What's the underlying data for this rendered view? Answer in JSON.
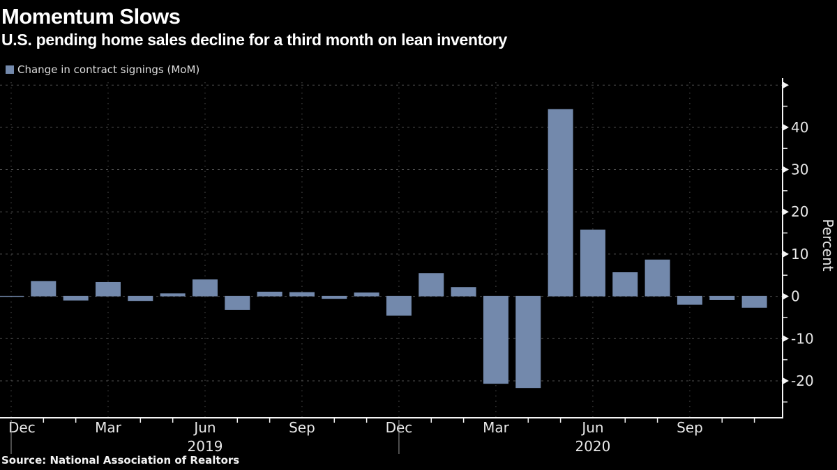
{
  "header": {
    "title": "Momentum Slows",
    "subtitle": "U.S. pending home sales decline for a third month on lean inventory"
  },
  "legend": {
    "label": "Change in contract signings (MoM)",
    "swatch_color": "#7389AC"
  },
  "source": {
    "text": "Source: National Association of Realtors"
  },
  "colors": {
    "background": "#000000",
    "bar": "#7389AC",
    "axis": "#f5f5f5",
    "gridline": "#4f4f4f",
    "tick_label": "#e8e8e8",
    "year_separator": "#999999"
  },
  "chart_data": {
    "type": "bar",
    "title": "Momentum Slows",
    "subtitle": "U.S. pending home sales decline for a third month on lean inventory",
    "series_name": "Change in contract signings (MoM)",
    "x": [
      "2018-12",
      "2019-01",
      "2019-02",
      "2019-03",
      "2019-04",
      "2019-05",
      "2019-06",
      "2019-07",
      "2019-08",
      "2019-09",
      "2019-10",
      "2019-11",
      "2019-12",
      "2020-01",
      "2020-02",
      "2020-03",
      "2020-04",
      "2020-05",
      "2020-06",
      "2020-07",
      "2020-08",
      "2020-09",
      "2020-10",
      "2020-11"
    ],
    "values": [
      -0.2,
      3.6,
      -1.1,
      3.4,
      -1.2,
      0.7,
      4.0,
      -3.3,
      1.1,
      1.0,
      -0.7,
      0.9,
      -4.7,
      5.5,
      2.2,
      -20.8,
      -21.8,
      44.3,
      15.8,
      5.7,
      8.7,
      -2.1,
      -1.0,
      -2.8
    ],
    "xlabel": "",
    "ylabel": "Percent",
    "ylim": [
      -28,
      51
    ],
    "yticks_labeled": [
      40,
      30,
      20,
      10,
      0,
      -10,
      -20
    ],
    "ygrid_values": [
      50,
      40,
      30,
      20,
      10,
      0,
      -10,
      -20
    ],
    "yticks_minor": [
      45,
      35,
      25,
      15,
      5,
      -5,
      -15,
      -25
    ],
    "grid": "dashed, dark gray, horizontal at 10s and vertical at quarter months",
    "legend_position": "top-left",
    "xticks": [
      {
        "label": "Dec",
        "month_index": 0
      },
      {
        "label": "Mar",
        "month_index": 3
      },
      {
        "label": "Jun",
        "month_index": 6
      },
      {
        "label": "Sep",
        "month_index": 9
      },
      {
        "label": "Dec",
        "month_index": 12
      },
      {
        "label": "Mar",
        "month_index": 15
      },
      {
        "label": "Jun",
        "month_index": 18
      },
      {
        "label": "Sep",
        "month_index": 21
      }
    ],
    "year_labels": [
      {
        "text": "2019",
        "center_month_index": 6
      },
      {
        "text": "2020",
        "center_month_index": 18
      }
    ],
    "year_separator_month_indices": [
      0,
      12
    ]
  }
}
